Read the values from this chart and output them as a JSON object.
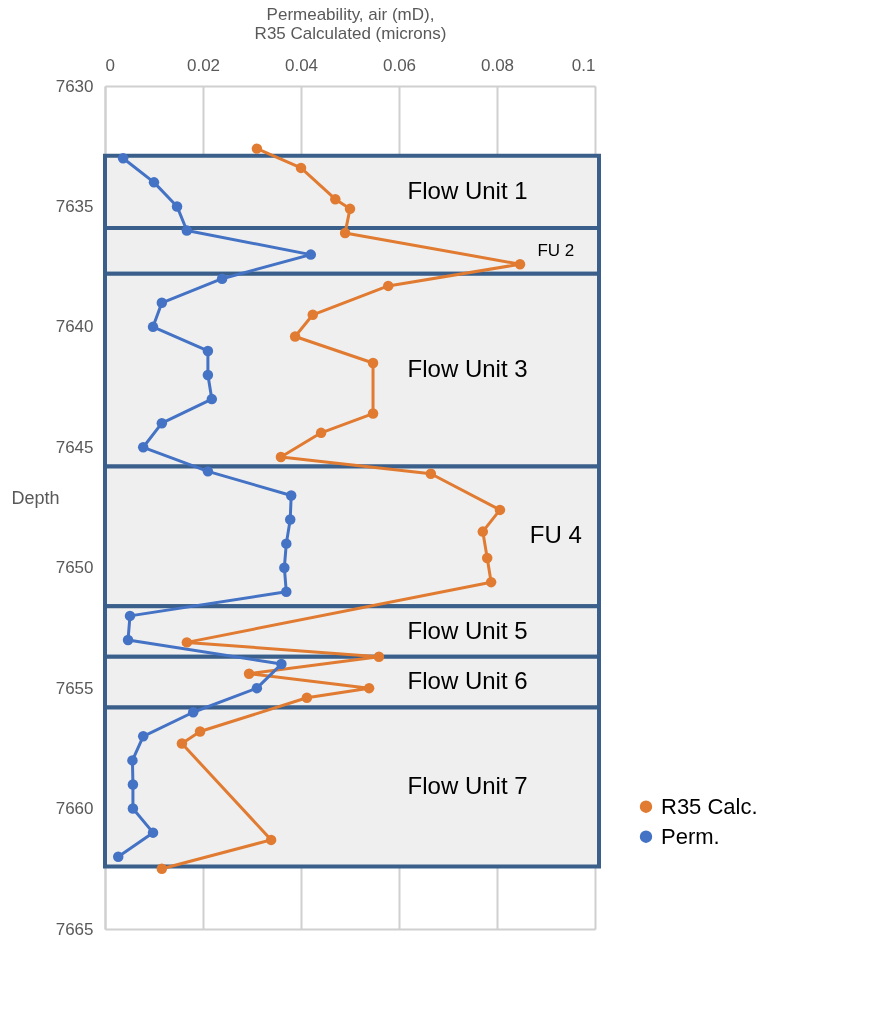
{
  "chart_data": {
    "type": "line",
    "xlabel": "Permeability, air (mD),\nR35 Calculated (microns)",
    "ylabel": "Depth",
    "xlim": [
      0,
      0.1
    ],
    "xticks": [
      0,
      0.02,
      0.04,
      0.06,
      0.08,
      0.1
    ],
    "ylim": [
      7665,
      7630
    ],
    "yticks": [
      7630,
      7635,
      7640,
      7645,
      7650,
      7655,
      7660,
      7665
    ],
    "grid": true,
    "legend": "bottom right",
    "marker": "circle",
    "line_style": "solid",
    "series": [
      {
        "name": "R35 Calc.",
        "color": "#e07b31",
        "x": [
          0.031,
          0.04,
          0.047,
          0.05,
          0.049,
          0.0847,
          0.0578,
          0.0424,
          0.0388,
          0.0547,
          0.0547,
          0.0441,
          0.0359,
          0.0665,
          0.0806,
          0.0771,
          0.078,
          0.0788,
          0.0167,
          0.0559,
          0.0294,
          0.0539,
          0.0412,
          0.0194,
          0.0157,
          0.0339,
          0.0116
        ],
        "values": [
          7632.6,
          7633.4,
          7634.7,
          7635.1,
          7636.1,
          7637.4,
          7638.3,
          7639.5,
          7640.4,
          7641.5,
          7643.6,
          7644.4,
          7645.4,
          7646.1,
          7647.6,
          7648.5,
          7649.6,
          7650.6,
          7653.1,
          7653.7,
          7654.4,
          7655.0,
          7655.4,
          7656.8,
          7657.3,
          7661.3,
          7662.5
        ]
      },
      {
        "name": "Perm.",
        "color": "#4472c4",
        "x": [
          0.0037,
          0.01,
          0.0147,
          0.0167,
          0.042,
          0.0239,
          0.0116,
          0.0098,
          0.021,
          0.021,
          0.0218,
          0.0116,
          0.0078,
          0.021,
          0.038,
          0.0378,
          0.037,
          0.0366,
          0.037,
          0.0051,
          0.0047,
          0.036,
          0.031,
          0.018,
          0.0078,
          0.0056,
          0.0057,
          0.0057,
          0.0098,
          0.0027
        ],
        "values": [
          7633,
          7634,
          7635,
          7636,
          7637,
          7638,
          7639,
          7640,
          7641,
          7642,
          7643,
          7644,
          7645,
          7646,
          7647,
          7648,
          7649,
          7650,
          7651,
          7652,
          7653,
          7654,
          7655,
          7656,
          7657,
          7658,
          7659,
          7660,
          7661,
          7662
        ]
      }
    ],
    "bands": [
      {
        "axis": "y",
        "from": 7632.9,
        "to": 7635.9,
        "label": "Flow Unit 1",
        "color": "#efefef"
      },
      {
        "axis": "y",
        "from": 7635.9,
        "to": 7637.8,
        "label": "FU 2",
        "color": "#efefef"
      },
      {
        "axis": "y",
        "from": 7637.8,
        "to": 7645.8,
        "label": "Flow Unit 3",
        "color": "#efefef"
      },
      {
        "axis": "y",
        "from": 7645.8,
        "to": 7651.6,
        "label": "FU 4",
        "color": "#efefef"
      },
      {
        "axis": "y",
        "from": 7651.6,
        "to": 7653.7,
        "label": "Flow Unit 5",
        "color": "#efefef"
      },
      {
        "axis": "y",
        "from": 7653.7,
        "to": 7655.8,
        "label": "Flow Unit 6",
        "color": "#efefef"
      },
      {
        "axis": "y",
        "from": 7655.8,
        "to": 7662.4,
        "label": "Flow Unit 7",
        "color": "#efefef"
      }
    ]
  }
}
